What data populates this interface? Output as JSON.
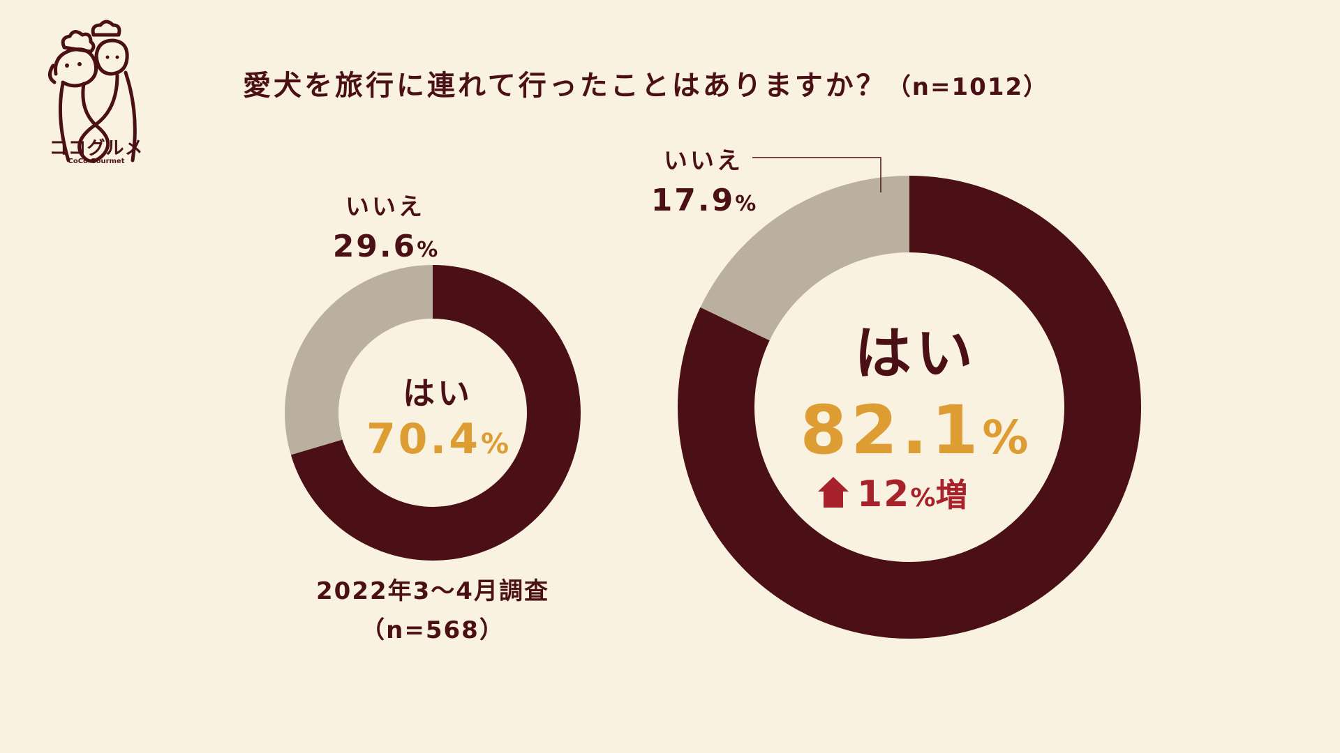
{
  "brand": {
    "name": "ココグルメ",
    "name_en": "CoCo Gourmet"
  },
  "title": {
    "question": "愛犬を旅行に連れて行ったことはありますか？",
    "n": "（n=1012）"
  },
  "colors": {
    "background": "#f9f2e1",
    "yes": "#4a1016",
    "no": "#bbaf9f",
    "highlight": "#de9d33",
    "increase": "#a8222b"
  },
  "chart_data": [
    {
      "type": "pie",
      "style": "donut",
      "categories": [
        "はい",
        "いいえ"
      ],
      "values": [
        70.4,
        29.6
      ],
      "labels": {
        "yes": "はい",
        "yes_value": "70.4",
        "no": "いいえ",
        "no_value": "29.6",
        "unit": "%"
      },
      "caption": "2022年3〜4月調査",
      "caption_n": "（n=568）"
    },
    {
      "type": "pie",
      "style": "donut",
      "categories": [
        "はい",
        "いいえ"
      ],
      "values": [
        82.1,
        17.9
      ],
      "labels": {
        "yes": "はい",
        "yes_value": "82.1",
        "no": "いいえ",
        "no_value": "17.9",
        "unit": "%"
      },
      "change": {
        "value": "12",
        "unit": "%",
        "suffix": "増",
        "direction": "up"
      }
    }
  ]
}
